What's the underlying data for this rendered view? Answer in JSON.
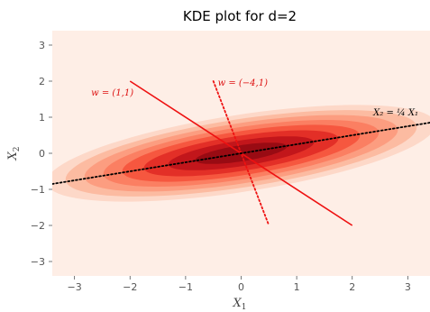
{
  "chart_data": {
    "type": "heatmap",
    "subtype": "kde-contour",
    "title": "KDE plot for d=2",
    "xlabel": "X",
    "xlabel_sub": "1",
    "ylabel": "X",
    "ylabel_sub": "2",
    "xlim": [
      -3.4,
      3.4
    ],
    "ylim": [
      -3.4,
      3.4
    ],
    "xticks": [
      -3,
      -2,
      -1,
      0,
      1,
      2,
      3
    ],
    "yticks": [
      -3,
      -2,
      -1,
      0,
      1,
      2,
      3
    ],
    "xtick_labels": [
      "−3",
      "−2",
      "−1",
      "0",
      "1",
      "2",
      "3"
    ],
    "ytick_labels": [
      "−3",
      "−2",
      "−1",
      "0",
      "1",
      "2",
      "3"
    ],
    "grid": false,
    "colormap": "Reds",
    "background_color": "#feeee6",
    "contours": {
      "center": [
        0,
        0
      ],
      "angle_deg": 14,
      "levels": [
        {
          "a": 3.6,
          "b": 1.05,
          "color": "#fdd8c8"
        },
        {
          "a": 3.25,
          "b": 0.93,
          "color": "#fcbba1"
        },
        {
          "a": 2.9,
          "b": 0.82,
          "color": "#fc9d80"
        },
        {
          "a": 2.55,
          "b": 0.71,
          "color": "#fb7f62"
        },
        {
          "a": 2.2,
          "b": 0.6,
          "color": "#f6573f"
        },
        {
          "a": 1.8,
          "b": 0.48,
          "color": "#e32f27"
        },
        {
          "a": 1.35,
          "b": 0.35,
          "color": "#c2161b"
        },
        {
          "a": 0.85,
          "b": 0.22,
          "color": "#990b13"
        }
      ]
    },
    "lines": [
      {
        "label": "w = (1,1)",
        "style": "solid",
        "color": "#ee1111",
        "points": [
          [
            -2,
            2
          ],
          [
            2,
            -2
          ]
        ],
        "label_pos": [
          -2.7,
          1.6
        ],
        "label_color": "#dd1111"
      },
      {
        "label": "w = (−4,1)",
        "style": "dotted",
        "color": "#ee1111",
        "points": [
          [
            -0.5,
            2
          ],
          [
            0.5,
            -2
          ]
        ],
        "label_pos": [
          -0.42,
          1.88
        ],
        "label_color": "#dd1111"
      },
      {
        "label": "X₂ = ¼ X₁",
        "style": "dotted",
        "color": "#000000",
        "points": [
          [
            -3.4,
            -0.85
          ],
          [
            3.4,
            0.85
          ]
        ],
        "label_pos": [
          2.38,
          1.05
        ],
        "label_color": "#000000"
      }
    ]
  }
}
